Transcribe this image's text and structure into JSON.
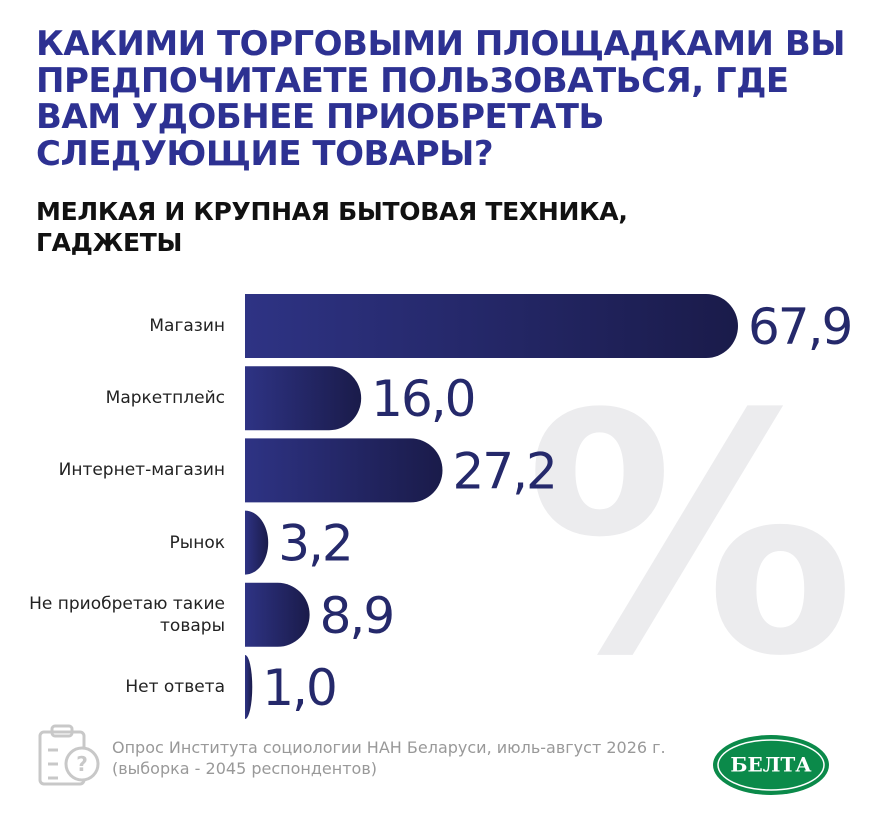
{
  "chart_data": {
    "type": "bar",
    "orientation": "horizontal",
    "title": "КАКИМИ ТОРГОВЫМИ ПЛОЩАДКАМИ ВЫ ПРЕДПОЧИТАЕТЕ ПОЛЬЗОВАТЬСЯ, ГДЕ ВАМ УДОБНЕЕ ПРИОБРЕТАТЬ СЛЕДУЮЩИЕ ТОВАРЫ?",
    "subtitle": "МЕЛКАЯ И КРУПНАЯ БЫТОВАЯ ТЕХНИКА, ГАДЖЕТЫ",
    "categories": [
      "Магазин",
      "Маркетплейс",
      "Интернет-магазин",
      "Рынок",
      "Не приобретаю такие товары",
      "Нет ответа"
    ],
    "values": [
      67.9,
      16.0,
      27.2,
      3.2,
      8.9,
      1.0
    ],
    "value_labels": [
      "67,9",
      "16,0",
      "27,2",
      "3,2",
      "8,9",
      "1,0"
    ],
    "color": "#25296b",
    "watermark": "%",
    "notes": [
      "Опрос Института социологии НАН Беларуси, июль-август 2026 г.",
      "(выборка - 2045 респондентов)"
    ],
    "logo": "БЕЛТА"
  }
}
